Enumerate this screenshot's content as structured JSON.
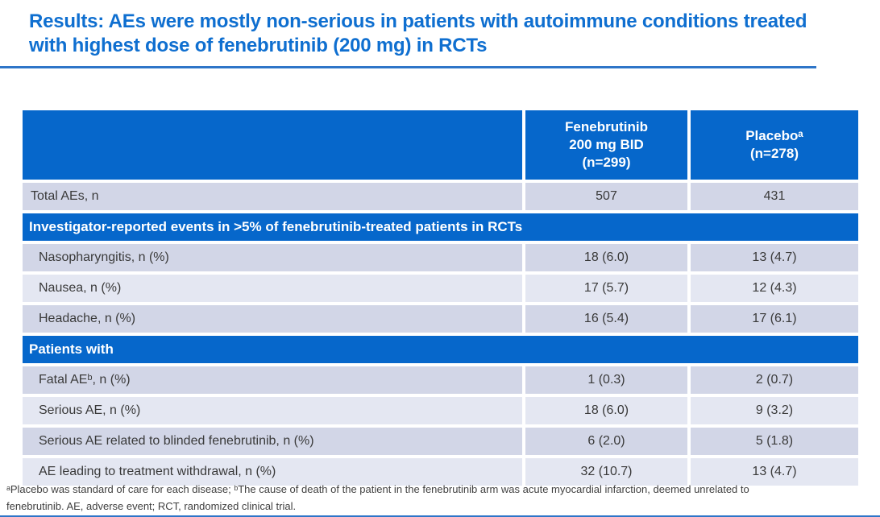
{
  "slide_title": "Results: AEs were mostly non-serious in patients with autoimmune conditions treated with highest dose of fenebrutinib (200 mg) in RCTs",
  "colors": {
    "title_blue": "#0F6FD0",
    "header_blue": "#0667CB",
    "rule_blue": "#2E75C8",
    "row_dark": "#D2D6E7",
    "row_light": "#E4E7F2"
  },
  "table": {
    "columns": [
      {
        "label": ""
      },
      {
        "label": "Fenebrutinib\n200 mg BID\n(n=299)"
      },
      {
        "label": "Placeboᵃ\n(n=278)"
      }
    ],
    "rows": [
      {
        "type": "data",
        "label": "Total AEs, n",
        "fenebrutinib": "507",
        "placebo": "431"
      },
      {
        "type": "section",
        "label": "Investigator-reported events in >5% of fenebrutinib-treated patients in RCTs"
      },
      {
        "type": "data",
        "label": "Nasopharyngitis, n (%)",
        "fenebrutinib": "18 (6.0)",
        "placebo": "13 (4.7)"
      },
      {
        "type": "data",
        "label": "Nausea, n (%)",
        "fenebrutinib": "17 (5.7)",
        "placebo": "12 (4.3)"
      },
      {
        "type": "data",
        "label": "Headache, n (%)",
        "fenebrutinib": "16 (5.4)",
        "placebo": "17 (6.1)"
      },
      {
        "type": "section",
        "label": "Patients with"
      },
      {
        "type": "data",
        "label": "Fatal AEᵇ, n (%)",
        "fenebrutinib": "1 (0.3)",
        "placebo": "2 (0.7)"
      },
      {
        "type": "data",
        "label": "Serious AE, n (%)",
        "fenebrutinib": "18 (6.0)",
        "placebo": "9 (3.2)"
      },
      {
        "type": "data",
        "label": "Serious AE related to blinded fenebrutinib, n (%)",
        "fenebrutinib": "6 (2.0)",
        "placebo": "5 (1.8)"
      },
      {
        "type": "data",
        "label": "AE leading to treatment withdrawal, n (%)",
        "fenebrutinib": "32 (10.7)",
        "placebo": "13 (4.7)"
      }
    ]
  },
  "footnote": {
    "line1": "ᵃPlacebo was standard of care for each disease; ᵇThe cause of death of the patient in the fenebrutinib arm was acute myocardial infarction, deemed unrelated to",
    "line2": "fenebrutinib. AE, adverse event; RCT, randomized clinical trial."
  }
}
